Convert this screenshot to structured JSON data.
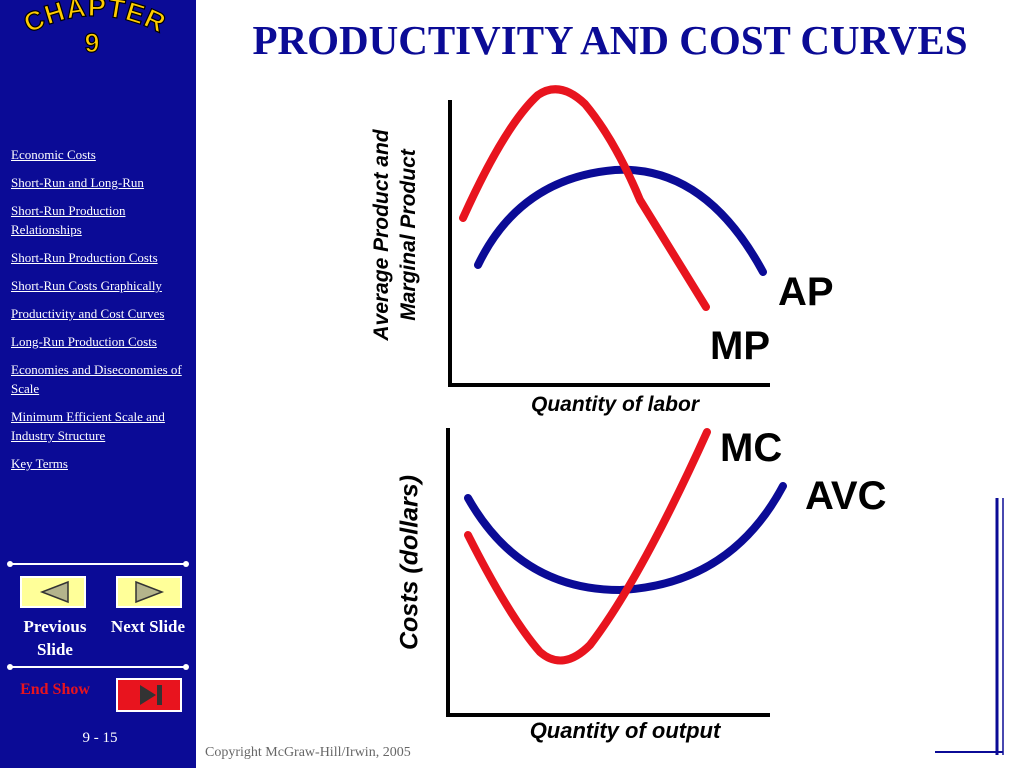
{
  "chapter": {
    "word": "CHAPTER",
    "number": "9"
  },
  "title": "PRODUCTIVITY AND COST CURVES",
  "sidebar": {
    "nav_items": [
      "Economic Costs",
      "Short-Run and Long-Run",
      "Short-Run Production Relationships",
      "Short-Run Production Costs",
      "Short-Run Costs Graphically",
      "Productivity and Cost Curves",
      "Long-Run Production Costs",
      "Economies and Diseconomies of Scale",
      "Minimum Efficient Scale and Industry Structure",
      "Key Terms"
    ],
    "previous_label": "Previous Slide",
    "next_label": "Next Slide",
    "end_label": "End Show",
    "slide_number": "9 - 15"
  },
  "top_diagram": {
    "y_axis_label_line1": "Average Product and",
    "y_axis_label_line2": "Marginal Product",
    "x_axis_label": "Quantity of labor",
    "curve_ap": "AP",
    "curve_mp": "MP"
  },
  "bottom_diagram": {
    "y_axis_label": "Costs (dollars)",
    "x_axis_label": "Quantity of output",
    "curve_mc": "MC",
    "curve_avc": "AVC"
  },
  "copyright": "Copyright McGraw-Hill/Irwin, 2005",
  "colors": {
    "sidebar": "#0b0b96",
    "red_curve": "#e8141e",
    "blue_curve": "#0b0b96",
    "button": "#ffff99",
    "badge_text": "#ffcc00"
  }
}
